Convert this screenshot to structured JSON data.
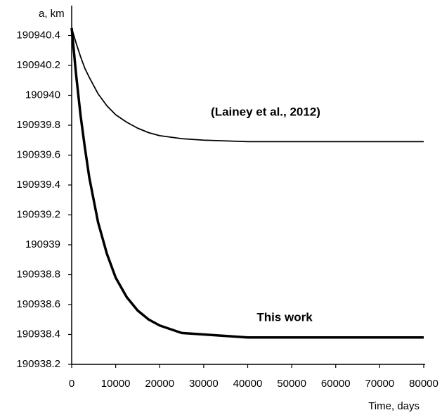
{
  "chart_data": {
    "type": "line",
    "y_label": "a, km",
    "x_label": "Time, days",
    "x": [
      0,
      1000,
      2000,
      3000,
      4000,
      6000,
      8000,
      10000,
      12500,
      15000,
      17500,
      20000,
      25000,
      30000,
      40000,
      50000,
      60000,
      70000,
      80000
    ],
    "series": [
      {
        "name": "(Lainey et al., 2012)",
        "color": "#000000",
        "line_width": 1.8,
        "values": [
          190940.45,
          190940.35,
          190940.26,
          190940.18,
          190940.12,
          190940.01,
          190939.93,
          190939.87,
          190939.82,
          190939.78,
          190939.75,
          190939.73,
          190939.71,
          190939.7,
          190939.69,
          190939.69,
          190939.69,
          190939.69,
          190939.69
        ]
      },
      {
        "name": "This work",
        "color": "#000000",
        "line_width": 3.5,
        "values": [
          190940.45,
          190940.14,
          190939.87,
          190939.65,
          190939.45,
          190939.15,
          190938.94,
          190938.78,
          190938.65,
          190938.56,
          190938.5,
          190938.46,
          190938.41,
          190938.4,
          190938.38,
          190938.38,
          190938.38,
          190938.38,
          190938.38
        ]
      }
    ],
    "xlim": [
      0,
      80000
    ],
    "xticks": [
      0,
      10000,
      20000,
      30000,
      40000,
      50000,
      60000,
      70000,
      80000
    ],
    "ylim": [
      190938.2,
      190940.6
    ],
    "yticks": [
      190938.2,
      190938.4,
      190938.6,
      190938.8,
      190939,
      190939.2,
      190939.4,
      190939.6,
      190939.8,
      190940,
      190940.2,
      190940.4
    ],
    "grid": false
  }
}
